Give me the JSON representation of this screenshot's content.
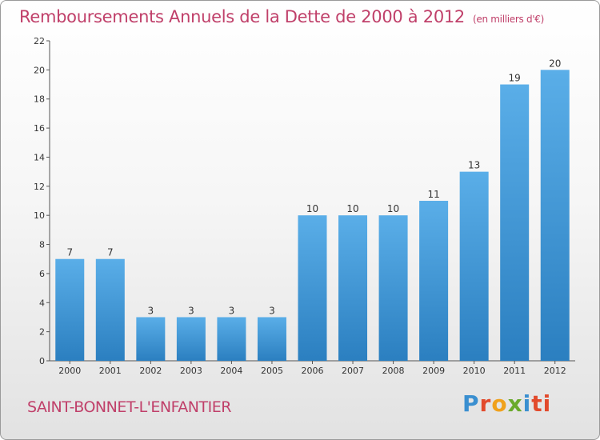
{
  "header": {
    "title": "Remboursements Annuels de la Dette de 2000 à 2012",
    "unit": "(en milliers d'€)"
  },
  "footer": {
    "commune": "SAINT-BONNET-L'ENFANTIER",
    "logo_letters": [
      "P",
      "r",
      "o",
      "x",
      "i",
      "ti"
    ]
  },
  "chart_data": {
    "type": "bar",
    "categories": [
      "2000",
      "2001",
      "2002",
      "2003",
      "2004",
      "2005",
      "2006",
      "2007",
      "2008",
      "2009",
      "2010",
      "2011",
      "2012"
    ],
    "values": [
      7,
      7,
      3,
      3,
      3,
      3,
      10,
      10,
      10,
      11,
      13,
      19,
      20
    ],
    "ylim": [
      0,
      22
    ],
    "yticks": [
      0,
      2,
      4,
      6,
      8,
      10,
      12,
      14,
      16,
      18,
      20,
      22
    ],
    "grid": false,
    "bar_color_top": "#5aaee8",
    "bar_color_bottom": "#2b7fc0"
  }
}
